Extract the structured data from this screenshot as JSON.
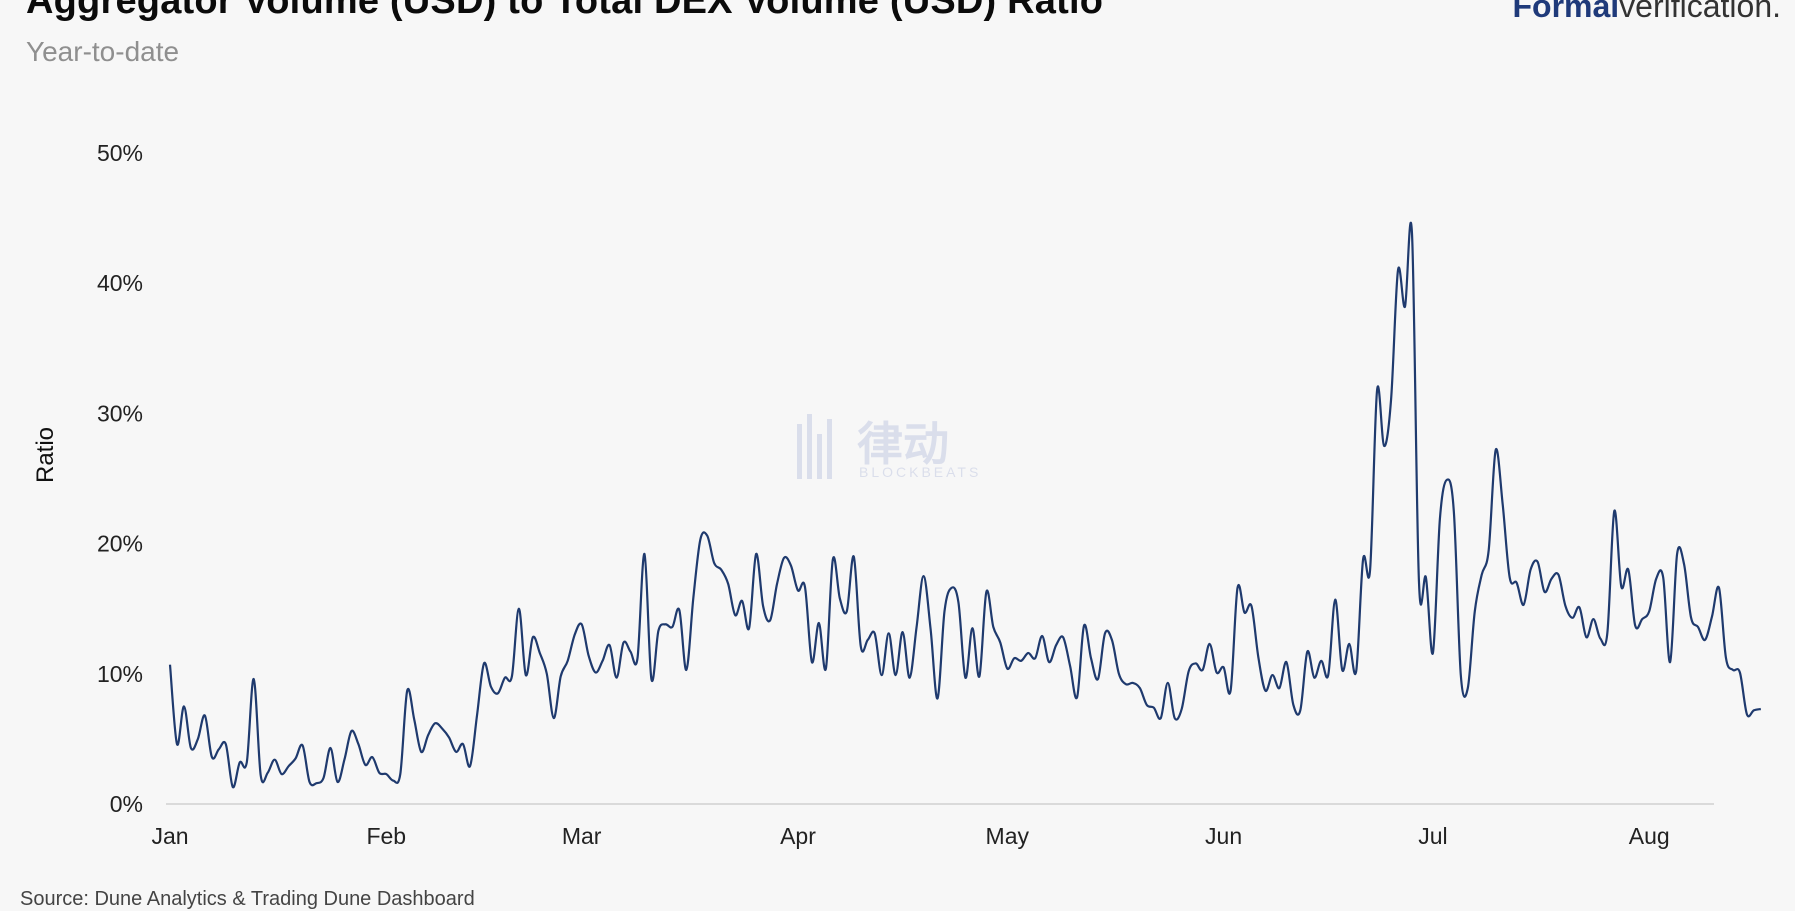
{
  "header": {
    "title": "Aggregator Volume (USD) to Total DEX Volume (USD) Ratio",
    "subtitle": "Year-to-date"
  },
  "brand": {
    "strong": "Formal",
    "light": "verification."
  },
  "source": "Source: Dune Analytics & Trading Dune Dashboard",
  "watermark": {
    "text": "律动",
    "sub": "BLOCKBEATS"
  },
  "colors": {
    "line": "#1f3a6e",
    "background": "#f7f7f7"
  },
  "chart_data": {
    "type": "line",
    "ylabel": "Ratio",
    "xlabel": "",
    "ylim": [
      0,
      50
    ],
    "yticks": [
      0,
      10,
      20,
      30,
      40,
      50
    ],
    "ytick_labels": [
      "0%",
      "10%",
      "20%",
      "30%",
      "40%",
      "50%"
    ],
    "x_ticks": [
      {
        "day": 0,
        "label": "Jan"
      },
      {
        "day": 31,
        "label": "Feb"
      },
      {
        "day": 59,
        "label": "Mar"
      },
      {
        "day": 90,
        "label": "Apr"
      },
      {
        "day": 120,
        "label": "May"
      },
      {
        "day": 151,
        "label": "Jun"
      },
      {
        "day": 181,
        "label": "Jul"
      },
      {
        "day": 212,
        "label": "Aug"
      }
    ],
    "xlim": [
      0,
      221
    ],
    "grid": false,
    "series": [
      {
        "values": [
          10.7,
          4.6,
          7.5,
          4.3,
          5,
          6.8,
          3.6,
          4.2,
          4.6,
          1.3,
          3.2,
          3.2,
          9.6,
          2.2,
          2.4,
          3.4,
          2.3,
          2.9,
          3.5,
          4.5,
          1.7,
          1.6,
          2,
          4.3,
          1.7,
          3.4,
          5.6,
          4.6,
          3,
          3.6,
          2.4,
          2.3,
          1.8,
          2.3,
          8.7,
          6.5,
          4,
          5.3,
          6.2,
          5.8,
          5.1,
          4,
          4.6,
          2.9,
          6.8,
          10.8,
          9,
          8.5,
          9.7,
          9.8,
          15,
          9.9,
          12.8,
          11.6,
          10,
          6.6,
          9.8,
          11,
          13,
          13.8,
          11.4,
          10.1,
          11,
          12.2,
          9.7,
          12.4,
          11.7,
          11.2,
          19.2,
          9.6,
          13.3,
          13.8,
          13.6,
          14.9,
          10.3,
          15.8,
          20.3,
          20.6,
          18.5,
          18,
          16.9,
          14.5,
          15.6,
          13.5,
          19.2,
          15.2,
          14.1,
          16.9,
          18.9,
          18.3,
          16.4,
          16.7,
          10.9,
          13.9,
          10.4,
          18.8,
          15.8,
          14.8,
          19,
          12.1,
          12.6,
          13.1,
          9.9,
          13.1,
          9.9,
          13.2,
          9.7,
          13.6,
          17.5,
          13.5,
          8.1,
          14.8,
          16.6,
          15.5,
          9.7,
          13.5,
          9.8,
          16.3,
          13.6,
          12.4,
          10.4,
          11.2,
          11,
          11.6,
          11.2,
          12.9,
          10.9,
          12.2,
          12.8,
          10.6,
          8.2,
          13.7,
          11.2,
          9.6,
          13.1,
          12.6,
          10,
          9.2,
          9.3,
          8.9,
          7.6,
          7.4,
          6.6,
          9.3,
          6.6,
          7.3,
          10.2,
          10.8,
          10.3,
          12.3,
          10.1,
          10.5,
          8.7,
          16.6,
          14.7,
          15.2,
          11.2,
          8.7,
          9.9,
          8.9,
          10.9,
          7.6,
          7.2,
          11.7,
          9.7,
          11,
          9.9,
          15.7,
          10.3,
          12.3,
          10.2,
          18.8,
          18,
          31.8,
          27.5,
          31,
          41,
          38.2,
          43.8,
          17,
          17.4,
          11.6,
          21.9,
          24.9,
          22.5,
          9.9,
          8.9,
          14.8,
          17.6,
          19.5,
          27.2,
          23,
          17.4,
          17,
          15.3,
          18,
          18.6,
          16.3,
          17.3,
          17.6,
          15.2,
          14.3,
          15.1,
          12.8,
          14.2,
          12.7,
          13.1,
          22.5,
          16.7,
          18,
          13.7,
          14.2,
          14.8,
          17.3,
          17.4,
          10.9,
          19.2,
          18.4,
          14.3,
          13.6,
          12.6,
          14.4,
          16.6,
          11.2,
          10.3,
          10.1,
          6.9,
          7.2,
          7.3
        ]
      }
    ]
  }
}
